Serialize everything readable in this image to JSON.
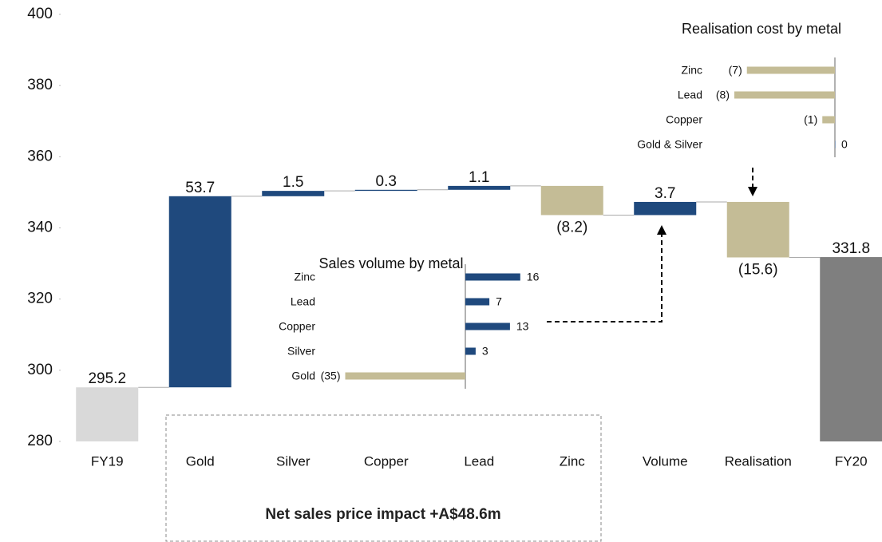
{
  "chart_data": [
    {
      "type": "waterfall",
      "categories": [
        "FY19",
        "Gold",
        "Silver",
        "Copper",
        "Lead",
        "Zinc",
        "Volume",
        "Realisation",
        "FY20"
      ],
      "values": [
        295.2,
        53.7,
        1.5,
        0.3,
        1.1,
        -8.2,
        3.7,
        -15.6,
        331.8
      ],
      "value_labels": [
        "295.2",
        "53.7",
        "1.5",
        "0.3",
        "1.1",
        "(8.2)",
        "3.7",
        "(15.6)",
        "331.8"
      ],
      "colors": {
        "start": "#d9d9d9",
        "end": "#7f7f7f",
        "increase": "#1f497d",
        "decrease": "#c4bc96"
      },
      "ylim": [
        280,
        400
      ],
      "yticks": [
        280,
        300,
        320,
        340,
        360,
        380,
        400
      ],
      "annotations": [
        "Net sales price impact +A$48.6m"
      ]
    },
    {
      "type": "bar",
      "orientation": "horizontal",
      "title": "Sales volume by metal",
      "categories": [
        "Zinc",
        "Lead",
        "Copper",
        "Silver",
        "Gold"
      ],
      "values": [
        16,
        7,
        13,
        3,
        -35
      ],
      "value_labels": [
        "16",
        "7",
        "13",
        "3",
        "(35)"
      ],
      "colors": {
        "increase": "#1f497d",
        "decrease": "#c4bc96"
      }
    },
    {
      "type": "bar",
      "orientation": "horizontal",
      "title": "Realisation cost by metal",
      "categories": [
        "Zinc",
        "Lead",
        "Copper",
        "Gold & Silver"
      ],
      "values": [
        -7,
        -8,
        -1,
        0
      ],
      "value_labels": [
        "(7)",
        "(8)",
        "(1)",
        "0"
      ],
      "colors": {
        "increase": "#1f497d",
        "decrease": "#c4bc96"
      }
    }
  ]
}
